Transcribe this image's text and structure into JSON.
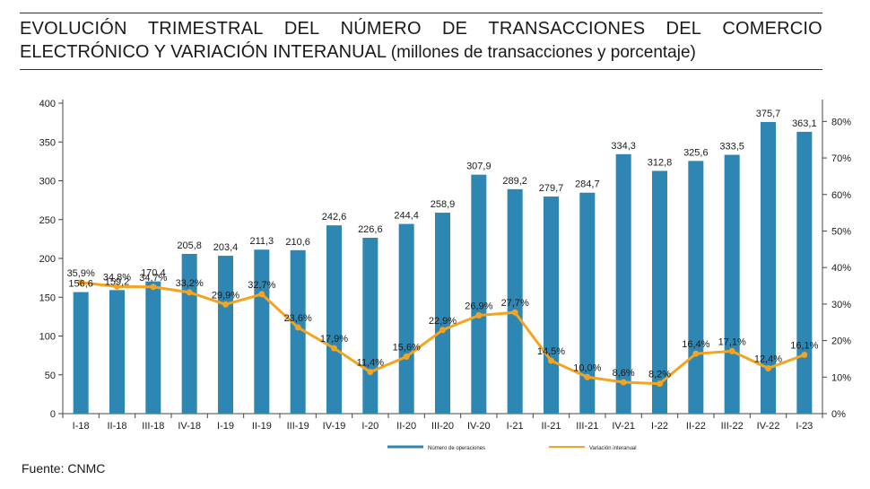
{
  "title": {
    "line1_words": [
      "EVOLUCIÓN",
      "TRIMESTRAL",
      "DEL",
      "NÚMERO",
      "DE",
      "TRANSACCIONES",
      "DEL",
      "COMERCIO"
    ],
    "line2_main": "ELECTRÓNICO Y VARIACIÓN INTERANUAL",
    "line2_sub": "(millones de transacciones y porcentaje)"
  },
  "source": "Fuente: CNMC",
  "colors": {
    "bar": "#2e86b3",
    "line": "#f4a41f",
    "axis": "#444444",
    "text": "#1a1a1a"
  },
  "chart_data": {
    "type": "bar",
    "categories": [
      "I-18",
      "II-18",
      "III-18",
      "IV-18",
      "I-19",
      "II-19",
      "III-19",
      "IV-19",
      "I-20",
      "II-20",
      "III-20",
      "IV-20",
      "I-21",
      "II-21",
      "III-21",
      "IV-21",
      "I-22",
      "II-22",
      "III-22",
      "IV-22",
      "I-23"
    ],
    "series": [
      {
        "name": "Número de operaciones",
        "type": "bar",
        "axis": "left",
        "values": [
          156.6,
          159.2,
          170.4,
          205.8,
          203.4,
          211.3,
          210.6,
          242.6,
          226.6,
          244.4,
          258.9,
          307.9,
          289.2,
          279.7,
          284.7,
          334.3,
          312.8,
          325.6,
          333.5,
          375.7,
          363.1
        ],
        "labels": [
          "156,6",
          "159,2",
          "170,4",
          "205,8",
          "203,4",
          "211,3",
          "210,6",
          "242,6",
          "226,6",
          "244,4",
          "258,9",
          "307,9",
          "289,2",
          "279,7",
          "284,7",
          "334,3",
          "312,8",
          "325,6",
          "333,5",
          "375,7",
          "363,1"
        ]
      },
      {
        "name": "Variación interanual",
        "type": "line",
        "axis": "right",
        "values": [
          35.9,
          34.8,
          34.7,
          33.2,
          29.9,
          32.7,
          23.6,
          17.9,
          11.4,
          15.6,
          22.9,
          26.9,
          27.7,
          14.5,
          10.0,
          8.6,
          8.2,
          16.4,
          17.1,
          12.4,
          16.1
        ],
        "labels": [
          "35,9%",
          "34,8%",
          "34,7%",
          "33,2%",
          "29,9%",
          "32,7%",
          "23,6%",
          "17,9%",
          "11,4%",
          "15,6%",
          "22,9%",
          "26,9%",
          "27,7%",
          "14,5%",
          "10,0%",
          "8,6%",
          "8,2%",
          "16,4%",
          "17,1%",
          "12,4%",
          "16,1%"
        ]
      }
    ],
    "y_left": {
      "ylim": [
        0,
        400
      ],
      "ticks": [
        "0",
        "50",
        "100",
        "150",
        "200",
        "250",
        "300",
        "350",
        "400"
      ]
    },
    "y_right": {
      "ylim": [
        0,
        85
      ],
      "ticks": [
        "0%",
        "10%",
        "20%",
        "30%",
        "40%",
        "50%",
        "60%",
        "70%",
        "80%"
      ]
    },
    "legend_placement": "bottom",
    "grid": false
  }
}
